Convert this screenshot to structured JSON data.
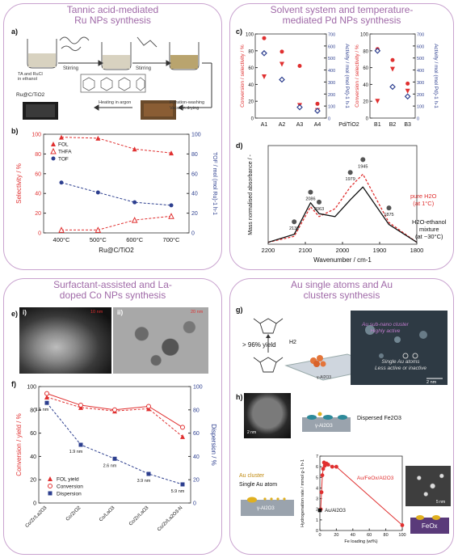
{
  "panels": {
    "p1": {
      "title_l1": "Tannic acid-mediated",
      "title_l2": "Ru NPs synthesis"
    },
    "p2": {
      "title_l1": "Solvent system and temperature-",
      "title_l2": "mediated Pd NPs synthesis"
    },
    "p3": {
      "title_l1": "Surfactant-assisted and La-",
      "title_l2": "doped Co NPs synthesis"
    },
    "p4": {
      "title_l1": "Au single atoms and Au",
      "title_l2": "clusters synthesis"
    }
  },
  "panel_a": {
    "label": "a)",
    "reagent_label_l1": "TA and RuCl",
    "reagent_label_l2": "in ethanol",
    "stirring_1": "Stirring",
    "stirring_2": "Stirring",
    "filtration_l1": "Filtration-washing",
    "filtration_l2": "Vacuum drying",
    "heating": "Heating in argon",
    "product": "Ru@C/TiO2"
  },
  "panel_b": {
    "label": "b)"
  },
  "panel_c": {
    "label": "c)"
  },
  "panel_d": {
    "label": "d)",
    "annot_water_l1": "pure H2O",
    "annot_water_l2": "(at 1°C)",
    "annot_mix_l1": "H2O-ethanol",
    "annot_mix_l2": "mixture",
    "annot_mix_l3": "(at ~30°C)",
    "peaks": [
      "2130",
      "2086",
      "2063",
      "1979",
      "1945",
      "1875"
    ]
  },
  "panel_e": {
    "label": "e)",
    "sub_i": "i)",
    "sub_ii": "ii)",
    "scale_i": "10 nm",
    "scale_ii": "20 nm"
  },
  "panel_f": {
    "label": "f)",
    "dispersion_annots": [
      "1.1 nm",
      "1.9 nm",
      "2.6 nm",
      "3.9 nm",
      "5.9 nm"
    ]
  },
  "panel_g": {
    "label": "g)",
    "yield": "> 96% yield",
    "h2": "H2",
    "cluster_l1": "Au sub-nano cluster",
    "cluster_l2": "Highly active",
    "single_l1": "Single Au atoms",
    "single_l2": "Less active or inactive",
    "support": "γ-Al2O3",
    "scale": "2 nm"
  },
  "panel_h": {
    "label": "h)",
    "dispersed": "Dispersed Fe2O3",
    "support_top": "γ-Al2O3",
    "au_cluster": "Au cluster",
    "single_atom": "Single Au atom",
    "support_bottom": "γ-Al2O3",
    "feox": "FeOx",
    "scale_left": "2 nm",
    "scale_right": "5 nm",
    "series_fe": "Au/FeOx/Al2O3",
    "series_al": "Au/Al2O3"
  },
  "chart_data": [
    {
      "id": "b",
      "type": "line",
      "categories": [
        "400°C",
        "500°C",
        "600°C",
        "700°C"
      ],
      "xlabel": "Ru@C/TiO2",
      "ylabel": "Selectivity / %",
      "ylabel_right": "TOF / mol (mol Ru)-1 h-1",
      "ylim": [
        0,
        100
      ],
      "ylim_right": [
        0,
        100
      ],
      "yticks": [
        0,
        20,
        40,
        60,
        80,
        100
      ],
      "series": [
        {
          "name": "FOL",
          "axis": "left",
          "color": "#e03030",
          "marker": "triangle",
          "values": [
            97,
            96,
            85,
            81
          ]
        },
        {
          "name": "THFA",
          "axis": "left",
          "color": "#e03030",
          "marker": "open-triangle",
          "values": [
            3,
            3,
            13,
            17
          ]
        },
        {
          "name": "TOF",
          "axis": "right",
          "color": "#2d3f8f",
          "marker": "circle",
          "values": [
            51,
            41,
            31,
            28
          ]
        }
      ]
    },
    {
      "id": "c",
      "type": "scatter",
      "categories": [
        "A1",
        "A2",
        "A3",
        "A4",
        "Pd/TiO2",
        "B1",
        "B2",
        "B3"
      ],
      "ylabel": "Conversion / selectivity / %",
      "ylabel_right": "Activity / mol (mol Pd)-1 h-1",
      "yticks_left": [
        0,
        20,
        40,
        60,
        80,
        100
      ],
      "yticks_right": [
        0,
        100,
        200,
        300,
        400,
        500,
        600,
        700
      ],
      "series": [
        {
          "name": "Conversion",
          "color": "#e03030",
          "marker": "circle",
          "values": [
            95,
            79,
            62,
            17,
            null,
            82,
            69,
            41
          ]
        },
        {
          "name": "Selectivity",
          "color": "#e03030",
          "marker": "triangle-down",
          "values": [
            49,
            64,
            15,
            9,
            null,
            20,
            58,
            32
          ]
        },
        {
          "name": "Activity",
          "color": "#2d3f8f",
          "marker": "diamond",
          "values": [
            540,
            320,
            90,
            60,
            null,
            560,
            260,
            180
          ]
        }
      ]
    },
    {
      "id": "d",
      "type": "line",
      "xlabel": "Wavenumber / cm-1",
      "ylabel": "Mass normalised absorbance / -",
      "xlim": [
        2200,
        1800
      ],
      "xticks": [
        2200,
        2100,
        2000,
        1900,
        1800
      ],
      "series": [
        {
          "name": "pure H2O (at 1°C)",
          "color": "#e03030",
          "style": "dashed",
          "x": [
            2200,
            2130,
            2086,
            2063,
            2020,
            1979,
            1945,
            1875,
            1800
          ],
          "y": [
            0.02,
            0.08,
            0.38,
            0.28,
            0.36,
            0.58,
            0.71,
            0.22,
            0.02
          ]
        },
        {
          "name": "H2O-ethanol mixture (at ~30°C)",
          "color": "#111111",
          "style": "solid",
          "x": [
            2200,
            2130,
            2086,
            2063,
            2020,
            1979,
            1945,
            1875,
            1800
          ],
          "y": [
            0.02,
            0.1,
            0.42,
            0.31,
            0.28,
            0.45,
            0.58,
            0.2,
            0.02
          ]
        }
      ]
    },
    {
      "id": "f",
      "type": "line",
      "categories": [
        "Co/Zr/La2O3",
        "Co/ZrO2",
        "Co/LaO3",
        "Co/Zr/LaO3",
        "Co/Zr/La2O3-N"
      ],
      "ylabel": "Conversion / yield / %",
      "ylabel_right": "Dispersion / %",
      "ylim": [
        0,
        100
      ],
      "yticks": [
        0,
        20,
        40,
        60,
        80,
        100
      ],
      "series": [
        {
          "name": "FOL yield",
          "axis": "left",
          "color": "#e03030",
          "marker": "triangle",
          "values": [
            91,
            82,
            79,
            81,
            57
          ]
        },
        {
          "name": "Conversion",
          "axis": "left",
          "color": "#e03030",
          "marker": "open-circle",
          "values": [
            94,
            84,
            80,
            83,
            65
          ]
        },
        {
          "name": "Dispersion",
          "axis": "right",
          "color": "#2d3f8f",
          "marker": "square",
          "values": [
            86,
            50,
            38,
            25,
            16
          ]
        }
      ]
    },
    {
      "id": "h",
      "type": "scatter",
      "xlabel": "Fe loading (wt%)",
      "ylabel": "Hydrogenation rate / mmol g-1 h-1",
      "xlim": [
        0,
        100
      ],
      "ylim": [
        0,
        7
      ],
      "xticks": [
        0,
        20,
        40,
        60,
        80,
        100
      ],
      "yticks": [
        0,
        1,
        2,
        3,
        4,
        5,
        6,
        7
      ],
      "series": [
        {
          "name": "Au/FeOx/Al2O3",
          "color": "#e03030",
          "x": [
            1,
            2,
            3,
            4,
            5,
            6,
            8,
            10,
            15,
            20,
            100
          ],
          "y": [
            2.0,
            3.6,
            5.2,
            5.8,
            6.4,
            6.1,
            6.3,
            6.2,
            6.0,
            6.0,
            0.5
          ]
        },
        {
          "name": "Au/Al2O3",
          "color": "#111111",
          "x": [
            0
          ],
          "y": [
            1.9
          ]
        }
      ]
    }
  ]
}
